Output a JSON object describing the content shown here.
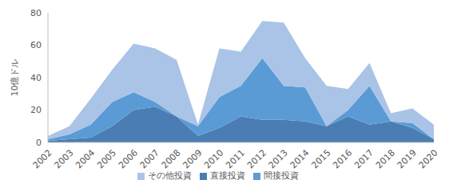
{
  "chart_data": {
    "type": "area",
    "y_label": "10億ドル",
    "categories": [
      "2002",
      "2003",
      "2004",
      "2005",
      "2006",
      "2007",
      "2008",
      "2009",
      "2010",
      "2011",
      "2012",
      "2013",
      "2014",
      "2015",
      "2016",
      "2017",
      "2018",
      "2019",
      "2020"
    ],
    "series": [
      {
        "name": "直接投資",
        "color": "#4a7db3",
        "values": [
          1,
          2,
          3,
          10,
          20,
          22,
          16,
          4,
          9,
          16,
          14,
          14,
          13,
          10,
          16,
          11,
          13,
          9,
          2
        ]
      },
      {
        "name": "間接投資",
        "color": "#5b9bd5",
        "values": [
          1,
          3,
          8,
          15,
          11,
          3,
          0,
          6,
          19,
          19,
          38,
          21,
          21,
          0,
          4,
          24,
          0,
          3,
          0
        ]
      },
      {
        "name": "その他投資",
        "color": "#a9c4e6",
        "values": [
          2,
          5,
          16,
          20,
          30,
          33,
          35,
          1,
          30,
          21,
          23,
          39,
          18,
          25,
          13,
          14,
          5,
          9,
          9
        ]
      }
    ],
    "ylim": [
      0,
      80
    ],
    "yticks": [
      0,
      20,
      40,
      60,
      80
    ],
    "stacked": true,
    "grid": false,
    "legend": "bottom"
  }
}
